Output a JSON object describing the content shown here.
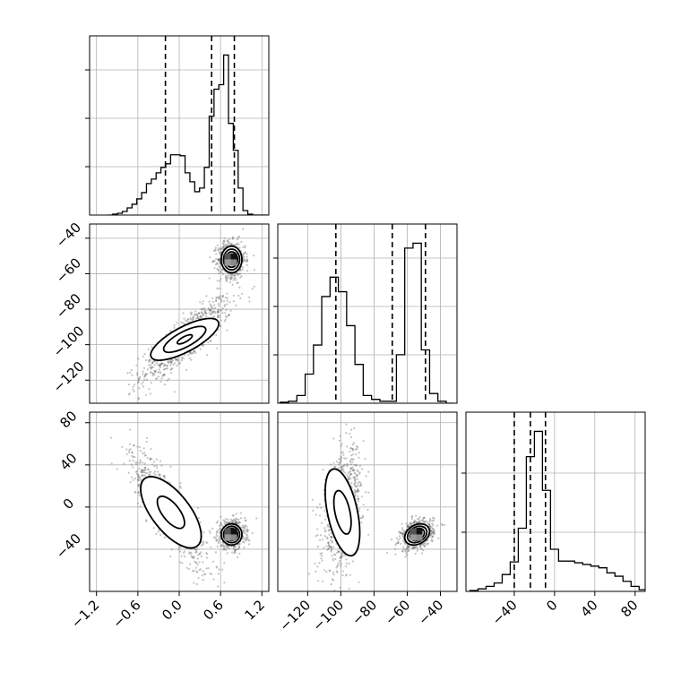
{
  "figure": {
    "type": "corner-plot"
  },
  "chart_data": [
    {
      "type": "bar",
      "panel": "hist-param-1",
      "bin_centers": [
        -1.0,
        -0.93,
        -0.86,
        -0.79,
        -0.72,
        -0.65,
        -0.58,
        -0.51,
        -0.44,
        -0.37,
        -0.3,
        -0.23,
        -0.16,
        -0.09,
        -0.02,
        0.05,
        0.12,
        0.19,
        0.26,
        0.33,
        0.4,
        0.47,
        0.54,
        0.61,
        0.68,
        0.75,
        0.82,
        0.89,
        0.96,
        1.03,
        1.1,
        1.17,
        1.24
      ],
      "counts": [
        0,
        1,
        2,
        4,
        8,
        12,
        18,
        25,
        35,
        40,
        47,
        53,
        57,
        67,
        67,
        66,
        47,
        37,
        26,
        30,
        53,
        110,
        140,
        145,
        178,
        102,
        72,
        30,
        5,
        1,
        0,
        0,
        0
      ],
      "quantile_lines_x": [
        -0.2,
        0.47,
        0.8
      ],
      "xlim": [
        -1.3,
        1.3
      ],
      "grid": true
    },
    {
      "type": "bar",
      "panel": "hist-param-2",
      "bin_centers": [
        -134,
        -129,
        -124,
        -119,
        -114,
        -109,
        -104,
        -99,
        -94,
        -89,
        -84,
        -79,
        -74,
        -69,
        -64,
        -59,
        -54,
        -49,
        -44,
        -39,
        -34
      ],
      "counts": [
        1,
        2,
        8,
        30,
        60,
        110,
        130,
        115,
        80,
        40,
        8,
        4,
        2,
        2,
        50,
        160,
        165,
        55,
        10,
        2,
        0
      ],
      "quantile_lines_x": [
        -103,
        -69,
        -49
      ],
      "xlim": [
        -138,
        -30
      ],
      "grid": true
    },
    {
      "type": "bar",
      "panel": "hist-param-3",
      "bin_centers": [
        -80,
        -72,
        -64,
        -56,
        -48,
        -40,
        -32,
        -24,
        -16,
        -8,
        0,
        8,
        16,
        24,
        32,
        40,
        48,
        56,
        64,
        72,
        80,
        88
      ],
      "counts": [
        1,
        3,
        6,
        10,
        20,
        35,
        75,
        160,
        190,
        120,
        50,
        36,
        36,
        34,
        32,
        30,
        28,
        22,
        18,
        12,
        6,
        2
      ],
      "quantile_lines_x": [
        -40,
        -24,
        -9
      ],
      "xlim": [
        -88,
        90
      ],
      "grid": true
    },
    {
      "type": "scatter",
      "panel": "density-param-1-vs-param-2",
      "clusters": [
        {
          "x_mean": 0.1,
          "y_mean": -97,
          "x_sd": 0.33,
          "y_sd": 12,
          "correlation": 0.85,
          "weight": 0.55
        },
        {
          "x_mean": 0.76,
          "y_mean": -52,
          "x_sd": 0.1,
          "y_sd": 5,
          "correlation": 0.0,
          "weight": 0.45
        }
      ],
      "xlim": [
        -1.3,
        1.3
      ],
      "ylim": [
        -133,
        -32
      ],
      "yticks": [
        -120,
        -100,
        -80,
        -60,
        -40
      ],
      "grid": true
    },
    {
      "type": "scatter",
      "panel": "density-param-1-vs-param-3",
      "clusters": [
        {
          "x_mean": -0.15,
          "y_mean": -2,
          "x_sd": 0.28,
          "y_sd": 28,
          "correlation": -0.85,
          "weight": 0.55
        },
        {
          "x_mean": 0.76,
          "y_mean": -26,
          "x_sd": 0.1,
          "y_sd": 7,
          "correlation": 0.0,
          "weight": 0.45
        }
      ],
      "xlim": [
        -1.3,
        1.3
      ],
      "ylim": [
        -80,
        90
      ],
      "yticks": [
        -40,
        0,
        40,
        80
      ],
      "xticks": [
        -1.2,
        -0.6,
        0.0,
        0.6,
        1.2
      ],
      "grid": true
    },
    {
      "type": "scatter",
      "panel": "density-param-2-vs-param-3",
      "clusters": [
        {
          "x_mean": -99,
          "y_mean": -2,
          "x_sd": 6,
          "y_sd": 28,
          "correlation": 0.4,
          "weight": 0.55
        },
        {
          "x_mean": -54,
          "y_mean": -26,
          "x_sd": 5,
          "y_sd": 7,
          "correlation": 0.3,
          "weight": 0.45
        }
      ],
      "xlim": [
        -138,
        -30
      ],
      "ylim": [
        -80,
        90
      ],
      "xticks": [
        -120,
        -100,
        -80,
        -60,
        -40
      ],
      "grid": true
    }
  ],
  "tick_labels": {
    "row2_y": [
      "−120",
      "−100",
      "−80",
      "−60",
      "−40"
    ],
    "row3_y": [
      "−40",
      "0",
      "40",
      "80"
    ],
    "col1_x": [
      "−1.2",
      "−0.6",
      "0.0",
      "0.6",
      "1.2"
    ],
    "col2_x": [
      "−120",
      "−100",
      "−80",
      "−60",
      "−40"
    ],
    "col3_x": [
      "−40",
      "0",
      "40",
      "80"
    ]
  },
  "colors": {
    "ink": "#000000",
    "grid": "#b0b0b0",
    "points": "#555555"
  }
}
